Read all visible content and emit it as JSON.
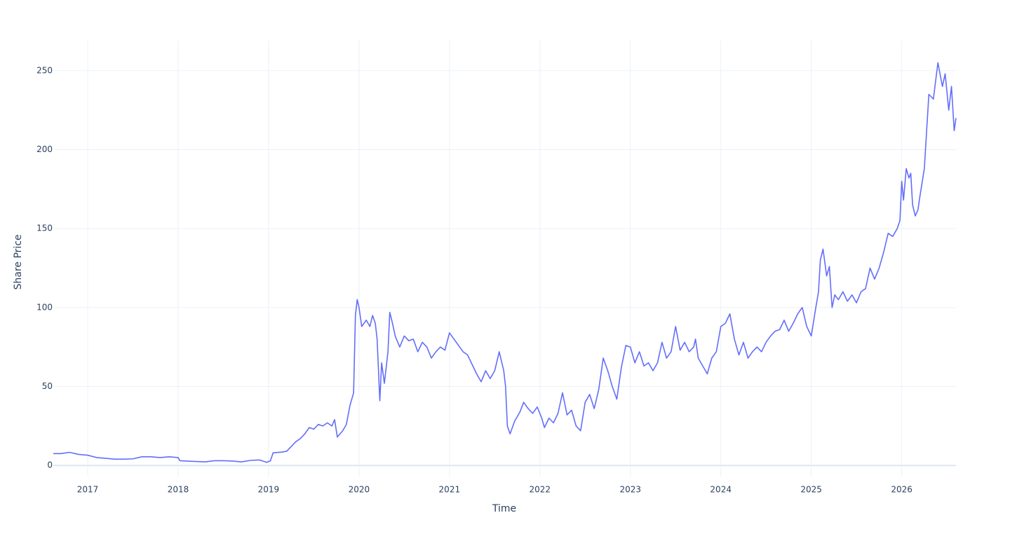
{
  "chart_data": {
    "type": "line",
    "x_label": "Time",
    "y_label": "Share Price",
    "xlim": [
      2016.62,
      2026.6
    ],
    "ylim": [
      -7,
      269
    ],
    "xticks": [
      2017,
      2018,
      2019,
      2020,
      2021,
      2022,
      2023,
      2024,
      2025,
      2026
    ],
    "yticks": [
      0,
      50,
      100,
      150,
      200,
      250
    ],
    "grid": true,
    "x": [
      2016.62,
      2016.7,
      2016.8,
      2016.9,
      2017.0,
      2017.1,
      2017.2,
      2017.3,
      2017.4,
      2017.5,
      2017.6,
      2017.7,
      2017.8,
      2017.9,
      2018.0,
      2018.02,
      2018.2,
      2018.3,
      2018.4,
      2018.5,
      2018.6,
      2018.7,
      2018.8,
      2018.9,
      2018.98,
      2019.02,
      2019.05,
      2019.15,
      2019.2,
      2019.25,
      2019.3,
      2019.35,
      2019.4,
      2019.45,
      2019.5,
      2019.55,
      2019.6,
      2019.65,
      2019.7,
      2019.73,
      2019.76,
      2019.82,
      2019.86,
      2019.9,
      2019.94,
      2019.96,
      2019.98,
      2020.0,
      2020.03,
      2020.08,
      2020.12,
      2020.15,
      2020.18,
      2020.2,
      2020.23,
      2020.25,
      2020.28,
      2020.32,
      2020.34,
      2020.37,
      2020.4,
      2020.45,
      2020.5,
      2020.55,
      2020.6,
      2020.65,
      2020.7,
      2020.75,
      2020.8,
      2020.85,
      2020.9,
      2020.95,
      2021.0,
      2021.05,
      2021.1,
      2021.15,
      2021.2,
      2021.25,
      2021.3,
      2021.35,
      2021.4,
      2021.45,
      2021.5,
      2021.55,
      2021.6,
      2021.62,
      2021.64,
      2021.67,
      2021.72,
      2021.78,
      2021.82,
      2021.87,
      2021.92,
      2021.97,
      2022.02,
      2022.05,
      2022.1,
      2022.15,
      2022.2,
      2022.25,
      2022.3,
      2022.35,
      2022.4,
      2022.45,
      2022.5,
      2022.55,
      2022.6,
      2022.65,
      2022.7,
      2022.75,
      2022.8,
      2022.85,
      2022.9,
      2022.95,
      2023.0,
      2023.05,
      2023.1,
      2023.15,
      2023.2,
      2023.25,
      2023.3,
      2023.35,
      2023.4,
      2023.45,
      2023.5,
      2023.55,
      2023.6,
      2023.65,
      2023.7,
      2023.72,
      2023.75,
      2023.8,
      2023.85,
      2023.9,
      2023.95,
      2024.0,
      2024.05,
      2024.1,
      2024.15,
      2024.2,
      2024.25,
      2024.3,
      2024.35,
      2024.4,
      2024.45,
      2024.5,
      2024.55,
      2024.6,
      2024.65,
      2024.7,
      2024.75,
      2024.8,
      2024.85,
      2024.9,
      2024.95,
      2025.0,
      2025.05,
      2025.08,
      2025.1,
      2025.13,
      2025.17,
      2025.2,
      2025.23,
      2025.26,
      2025.3,
      2025.35,
      2025.4,
      2025.45,
      2025.5,
      2025.55,
      2025.6,
      2025.65,
      2025.7,
      2025.75,
      2025.8,
      2025.85,
      2025.9,
      2025.95,
      2025.98,
      2026.0,
      2026.02,
      2026.05,
      2026.08,
      2026.1,
      2026.12,
      2026.15,
      2026.18,
      2026.2,
      2026.25,
      2026.3,
      2026.35,
      2026.4,
      2026.45,
      2026.48,
      2026.52,
      2026.55,
      2026.58,
      2026.6
    ],
    "series": [
      {
        "name": "Share Price",
        "color": "#636efa",
        "values": [
          7.5,
          7.5,
          8.3,
          7,
          6.5,
          5,
          4.5,
          4,
          4,
          4.2,
          5.5,
          5.5,
          5,
          5.5,
          5,
          3,
          2.5,
          2.3,
          3,
          3,
          2.8,
          2.3,
          3.2,
          3.5,
          2,
          3,
          8,
          8.5,
          9,
          12,
          15,
          17,
          20,
          24,
          23,
          26,
          25,
          27,
          25,
          29,
          18,
          22,
          26,
          38,
          46,
          95,
          105,
          100,
          88,
          92,
          88,
          95,
          90,
          80,
          41,
          65,
          52,
          72,
          97,
          90,
          82,
          75,
          82,
          79,
          80,
          72,
          78,
          75,
          68,
          72,
          75,
          73,
          84,
          80,
          76,
          72,
          70,
          64,
          58,
          53,
          60,
          55,
          60,
          72,
          60,
          50,
          25,
          20,
          28,
          34,
          40,
          36,
          33,
          37,
          30,
          24,
          30,
          27,
          33,
          46,
          32,
          35,
          25,
          22,
          40,
          45,
          36,
          48,
          68,
          60,
          50,
          42,
          62,
          76,
          75,
          65,
          72,
          63,
          65,
          60,
          65,
          78,
          68,
          72,
          88,
          73,
          78,
          72,
          75,
          80,
          68,
          63,
          58,
          68,
          72,
          88,
          90,
          96,
          80,
          70,
          78,
          68,
          72,
          75,
          72,
          78,
          82,
          85,
          86,
          92,
          85,
          90,
          96,
          100,
          88,
          82,
          100,
          110,
          130,
          137,
          120,
          126,
          100,
          108,
          105,
          110,
          104,
          108,
          103,
          110,
          112,
          125,
          118,
          125,
          135,
          147,
          145,
          150,
          155,
          180,
          168,
          188,
          182,
          185,
          165,
          158,
          162,
          170,
          188,
          235,
          232,
          255,
          240,
          248,
          225,
          240,
          212,
          220
        ]
      }
    ]
  }
}
